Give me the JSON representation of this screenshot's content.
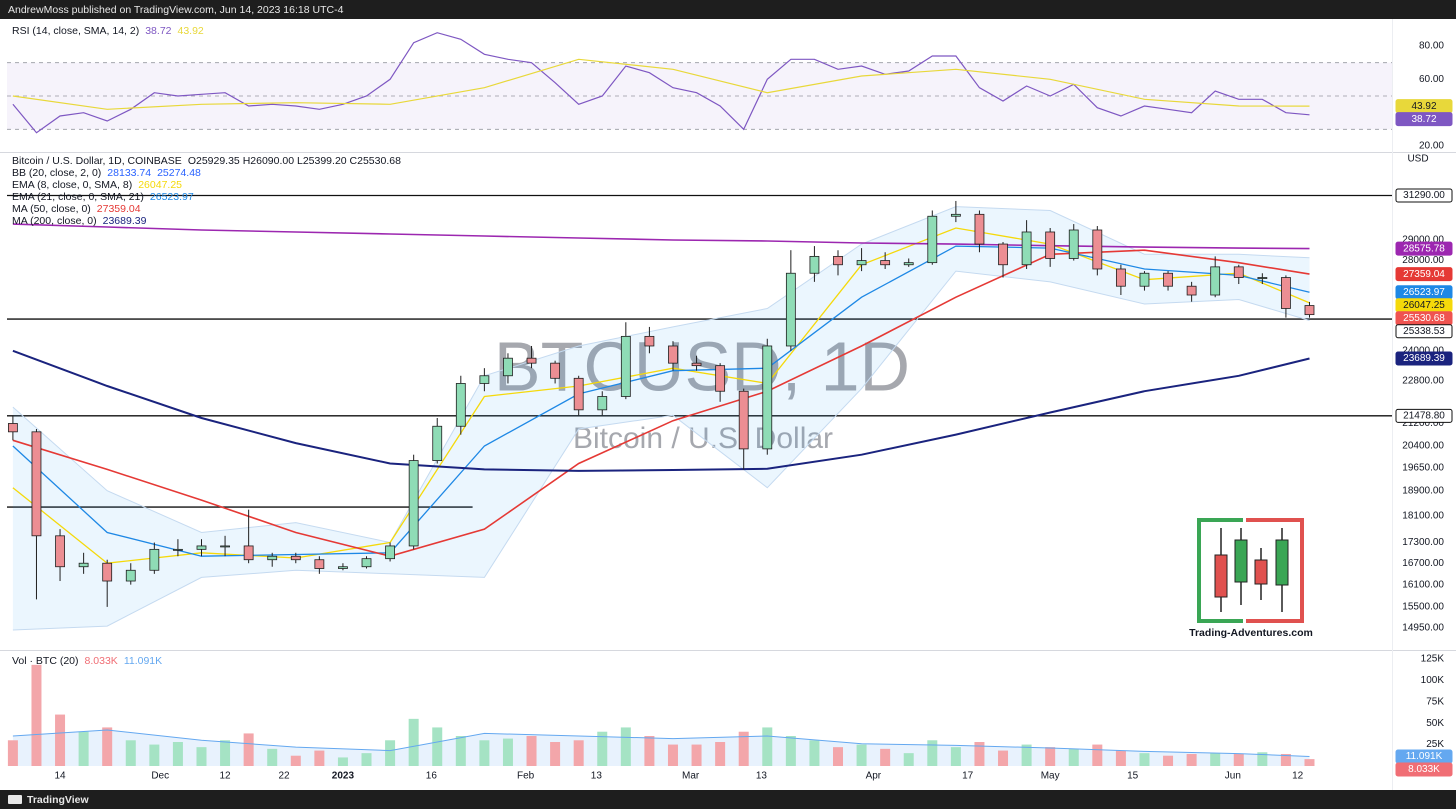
{
  "header": {
    "publisher": "AndrewMoss published on TradingView.com, Jun 14, 2023 16:18 UTC-4"
  },
  "footer": {
    "brand": "TradingView"
  },
  "logo": {
    "text": "Trading-Adventures.com"
  },
  "chart_data": [
    {
      "type": "line",
      "title": "RSI (14, close, SMA, 14, 2)",
      "x": [
        1,
        5,
        9,
        13,
        17,
        21,
        25,
        29,
        33,
        37,
        41,
        45,
        49,
        53,
        57,
        61,
        65,
        69,
        73,
        77,
        81,
        85,
        89,
        93,
        97,
        101,
        105,
        109,
        113,
        117,
        121,
        125,
        129,
        133,
        137,
        141,
        145,
        149,
        153,
        157,
        161,
        165,
        169,
        173,
        177,
        181,
        185,
        189,
        193,
        197,
        201,
        205,
        209,
        213,
        217,
        221
      ],
      "ylim": [
        17.6,
        92.6
      ],
      "yticks": [
        {
          "value": 80,
          "label": "80.00"
        },
        {
          "value": 60,
          "label": "60.00"
        },
        {
          "value": 20,
          "label": "20.00"
        }
      ],
      "levels": [
        70,
        50,
        30
      ],
      "level_fill": "rgba(126,87,194,0.07)",
      "series": [
        {
          "color": "#7e57c2",
          "values": [
            45,
            28,
            38,
            40,
            35,
            42,
            52,
            50,
            51,
            52,
            44,
            45,
            44,
            42,
            45,
            50,
            60,
            82,
            88,
            84,
            75,
            72,
            70,
            58,
            45,
            50,
            68,
            64,
            55,
            52,
            44,
            30,
            60,
            72,
            72,
            66,
            68,
            63,
            65,
            74,
            74,
            55,
            47,
            56,
            50,
            57,
            43,
            38,
            44,
            42,
            40,
            53,
            48,
            48,
            40,
            38.72
          ]
        },
        {
          "color": "#e8d83a",
          "x": [
            1,
            17,
            33,
            49,
            65,
            81,
            97,
            113,
            129,
            145,
            161,
            177,
            193,
            209,
            221
          ],
          "values": [
            50,
            42,
            45,
            46,
            45,
            55,
            72,
            66,
            52,
            62,
            66,
            60,
            48,
            44,
            43.92
          ]
        }
      ]
    },
    {
      "type": "candlestick",
      "title": "Bitcoin / U.S. Dollar, 1D, COINBASE",
      "ohlc_label": "O25929.35  H26090.00  L25399.20  C25530.68",
      "unit": "USD",
      "watermark": "BTCUSD, 1D",
      "watermark_subtitle": "Bitcoin / U.S. Dollar",
      "log_scale": true,
      "ylim": [
        14400,
        33530
      ],
      "yticks": [
        {
          "value": 29000,
          "label": "29000.00"
        },
        {
          "value": 28000,
          "label": "28000.00"
        },
        {
          "value": 24000,
          "label": "24000.00"
        },
        {
          "value": 22800,
          "label": "22800.00"
        },
        {
          "value": 21200,
          "label": "21200.00"
        },
        {
          "value": 20400,
          "label": "20400.00"
        },
        {
          "value": 19650,
          "label": "19650.00"
        },
        {
          "value": 18900,
          "label": "18900.00"
        },
        {
          "value": 18100,
          "label": "18100.00"
        },
        {
          "value": 17300,
          "label": "17300.00"
        },
        {
          "value": 16700,
          "label": "16700.00"
        },
        {
          "value": 16100,
          "label": "16100.00"
        },
        {
          "value": 15500,
          "label": "15500.00"
        },
        {
          "value": 14950,
          "label": "14950.00"
        }
      ],
      "up_color": "#8fdcb6",
      "down_color": "#ec8e93",
      "outline": "#1f1f1f",
      "x": [
        1,
        5,
        9,
        13,
        17,
        21,
        25,
        29,
        33,
        37,
        41,
        45,
        49,
        53,
        57,
        61,
        65,
        69,
        73,
        77,
        81,
        85,
        89,
        93,
        97,
        101,
        105,
        109,
        113,
        117,
        121,
        125,
        129,
        133,
        137,
        141,
        145,
        149,
        153,
        157,
        161,
        165,
        169,
        173,
        177,
        181,
        185,
        189,
        193,
        197,
        201,
        205,
        209,
        213,
        217,
        221
      ],
      "open": [
        21200,
        20900,
        17500,
        16600,
        16700,
        16200,
        16500,
        17100,
        17100,
        17200,
        17200,
        16800,
        16900,
        16800,
        16550,
        16600,
        16830,
        17200,
        19900,
        21100,
        22700,
        23000,
        23700,
        23500,
        22900,
        21700,
        22200,
        24600,
        24200,
        23500,
        23400,
        22400,
        20300,
        24200,
        27400,
        28200,
        27800,
        28000,
        27800,
        27900,
        30200,
        30300,
        28800,
        27800,
        29400,
        28100,
        29500,
        27600,
        26800,
        27400,
        26800,
        26400,
        27700,
        27200,
        27200,
        25929.35
      ],
      "high": [
        21500,
        21000,
        17700,
        17000,
        16800,
        16700,
        17300,
        17400,
        17400,
        17500,
        18300,
        17000,
        17000,
        16900,
        16700,
        16900,
        17300,
        20100,
        21400,
        23000,
        23300,
        23900,
        24200,
        23600,
        23000,
        22400,
        25200,
        25000,
        24400,
        23800,
        23500,
        22500,
        24500,
        28500,
        28700,
        28500,
        28600,
        28400,
        28100,
        30500,
        31000,
        30500,
        28900,
        30000,
        29600,
        29800,
        29700,
        27800,
        27500,
        27500,
        27000,
        28200,
        27800,
        27400,
        27300,
        26090
      ],
      "low": [
        20600,
        15700,
        16200,
        16400,
        15500,
        16100,
        16400,
        16900,
        16900,
        16900,
        16700,
        16600,
        16700,
        16400,
        16500,
        16550,
        16750,
        17100,
        19800,
        20800,
        22400,
        22700,
        23300,
        22700,
        21500,
        21500,
        22100,
        23900,
        23200,
        23200,
        22000,
        19600,
        20100,
        24000,
        27000,
        27300,
        27500,
        27600,
        27700,
        27800,
        29900,
        28400,
        27200,
        27600,
        27700,
        28000,
        27300,
        26400,
        26600,
        26600,
        26100,
        26300,
        26900,
        26900,
        25400,
        25399.2
      ],
      "close": [
        20900,
        17500,
        16600,
        16700,
        16200,
        16500,
        17100,
        17100,
        17200,
        17200,
        16800,
        16900,
        16800,
        16550,
        16600,
        16830,
        17200,
        19900,
        21100,
        22700,
        23000,
        23700,
        23500,
        22900,
        21700,
        22200,
        24600,
        24200,
        23500,
        23400,
        22400,
        20300,
        24200,
        27400,
        28200,
        27800,
        28000,
        27800,
        27900,
        30200,
        30300,
        28800,
        27800,
        29400,
        28100,
        29500,
        27600,
        26800,
        27400,
        26800,
        26400,
        27700,
        27200,
        27200,
        25800,
        25530.68
      ],
      "close_color": "#ef5350",
      "overlay_x": [
        1,
        17,
        33,
        49,
        65,
        81,
        97,
        113,
        129,
        145,
        161,
        177,
        193,
        209,
        221
      ],
      "overlays": [
        {
          "name": "BB (20, close, 2, 0)",
          "color": "#2962ff",
          "edge": "#c5daf0",
          "fill": "rgba(33,150,243,0.09)",
          "upper": [
            21800,
            18900,
            17600,
            17900,
            17300,
            23000,
            24200,
            25000,
            25800,
            28800,
            30700,
            30500,
            28300,
            28300,
            28133.74
          ],
          "lower": [
            14900,
            15000,
            16300,
            16500,
            16400,
            16300,
            21000,
            21500,
            19000,
            22500,
            27500,
            27000,
            26000,
            26200,
            25274.48
          ]
        },
        {
          "name": "EMA (8, close, 0, SMA, 8)",
          "color": "#f5d90a",
          "width": 1.3,
          "values": [
            19000,
            16700,
            17000,
            16850,
            17300,
            22200,
            22600,
            23300,
            22700,
            27800,
            29600,
            28800,
            27100,
            27400,
            26047.25
          ]
        },
        {
          "name": "EMA (21, close, 0, SMA, 21)",
          "color": "#1e88e5",
          "width": 1.3,
          "values": [
            20400,
            17600,
            16900,
            16950,
            17000,
            20400,
            22300,
            23200,
            23300,
            26300,
            28700,
            28600,
            27600,
            27300,
            26523.97
          ]
        },
        {
          "name": "MA (50, close, 0)",
          "color": "#e53935",
          "width": 1.6,
          "values": [
            20600,
            19600,
            18600,
            17600,
            16900,
            17700,
            19800,
            21300,
            22400,
            24200,
            26300,
            28300,
            28500,
            27900,
            27359.04
          ]
        },
        {
          "name": "MA (200, close, 0)",
          "color": "#1a237e",
          "width": 2,
          "values": [
            24000,
            22600,
            21400,
            20500,
            19800,
            19600,
            19550,
            19580,
            19620,
            20100,
            20800,
            21600,
            22400,
            23000,
            23689.39
          ]
        },
        {
          "color": "#9c27b0",
          "width": 1.6,
          "values": [
            29800,
            29650,
            29500,
            29400,
            29300,
            29200,
            29100,
            29000,
            28950,
            28850,
            28800,
            28720,
            28650,
            28600,
            28575.78
          ]
        }
      ],
      "hlines": [
        {
          "value": 31290,
          "label": "31290.00"
        },
        25338.53,
        {
          "value": 21478.8,
          "label": "21478.80"
        }
      ],
      "hline_color": "#111111",
      "segments": [
        {
          "value": 18380,
          "x": [
            0,
            79
          ]
        }
      ]
    },
    {
      "type": "bar",
      "title": "Vol · BTC (20)",
      "xlim": [
        0,
        235
      ],
      "xticks": [
        {
          "value": 9,
          "label": "14"
        },
        {
          "value": 26,
          "label": "Dec"
        },
        {
          "value": 37,
          "label": "12"
        },
        {
          "value": 47,
          "label": "22"
        },
        {
          "value": 57,
          "label": "2023",
          "bold": true
        },
        {
          "value": 72,
          "label": "16"
        },
        {
          "value": 88,
          "label": "Feb"
        },
        {
          "value": 100,
          "label": "13"
        },
        {
          "value": 116,
          "label": "Mar"
        },
        {
          "value": 128,
          "label": "13"
        },
        {
          "value": 147,
          "label": "Apr"
        },
        {
          "value": 163,
          "label": "17"
        },
        {
          "value": 177,
          "label": "May"
        },
        {
          "value": 191,
          "label": "15"
        },
        {
          "value": 208,
          "label": "Jun"
        },
        {
          "value": 219,
          "label": "12"
        }
      ],
      "ylim": [
        0,
        133000
      ],
      "yticks": [
        {
          "value": 125000,
          "label": "125K"
        },
        {
          "value": 100000,
          "label": "100K"
        },
        {
          "value": 75000,
          "label": "75K"
        },
        {
          "value": 50000,
          "label": "50K"
        },
        {
          "value": 25000,
          "label": "25K"
        }
      ],
      "x": [
        1,
        5,
        9,
        13,
        17,
        21,
        25,
        29,
        33,
        37,
        41,
        45,
        49,
        53,
        57,
        61,
        65,
        69,
        73,
        77,
        81,
        85,
        89,
        93,
        97,
        101,
        105,
        109,
        113,
        117,
        121,
        125,
        129,
        133,
        137,
        141,
        145,
        149,
        153,
        157,
        161,
        165,
        169,
        173,
        177,
        181,
        185,
        189,
        193,
        197,
        201,
        205,
        209,
        213,
        217,
        221
      ],
      "up_color": "#a5e3c4",
      "down_color": "#f3a6aa",
      "series": [
        {
          "color": "#f06e75",
          "values": [
            30000,
            118000,
            60000,
            40000,
            45000,
            30000,
            25000,
            28000,
            22000,
            30000,
            38000,
            20000,
            12000,
            18000,
            10000,
            15000,
            30000,
            55000,
            45000,
            35000,
            30000,
            32000,
            35000,
            28000,
            30000,
            40000,
            45000,
            35000,
            25000,
            25000,
            28000,
            40000,
            45000,
            35000,
            30000,
            22000,
            25000,
            20000,
            15000,
            30000,
            22000,
            28000,
            18000,
            25000,
            22000,
            20000,
            25000,
            18000,
            15000,
            12000,
            14000,
            15000,
            14000,
            16000,
            14000,
            8033
          ],
          "value_labels": [
            null,
            null,
            null,
            null,
            null,
            null,
            null,
            null,
            null,
            null,
            null,
            null,
            null,
            null,
            null,
            null,
            null,
            null,
            null,
            null,
            null,
            null,
            null,
            null,
            null,
            null,
            null,
            null,
            null,
            null,
            null,
            null,
            null,
            null,
            null,
            null,
            null,
            null,
            null,
            null,
            null,
            null,
            null,
            null,
            null,
            null,
            null,
            null,
            null,
            null,
            null,
            null,
            null,
            null,
            null,
            "8.033K"
          ]
        },
        {
          "color": "#64a8f0",
          "fill": "rgba(100,168,240,0.15)",
          "x": [
            1,
            17,
            33,
            49,
            65,
            81,
            97,
            113,
            129,
            145,
            161,
            177,
            193,
            209,
            221
          ],
          "values": [
            35000,
            42000,
            30000,
            22000,
            18000,
            38000,
            35000,
            32000,
            35000,
            26000,
            24000,
            21000,
            17000,
            14500,
            11091
          ],
          "value_labels": [
            null,
            null,
            null,
            null,
            null,
            null,
            null,
            null,
            null,
            null,
            null,
            null,
            null,
            null,
            "11.091K"
          ]
        }
      ]
    }
  ]
}
